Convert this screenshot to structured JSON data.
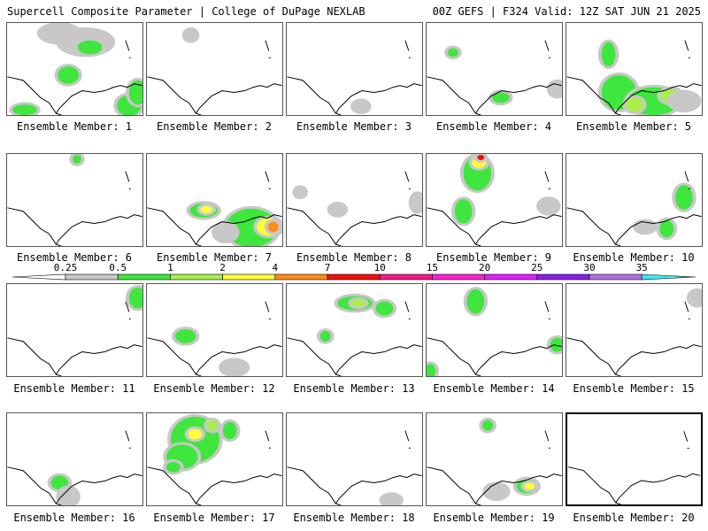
{
  "header": {
    "left": "Supercell Composite Parameter | College of DuPage NEXLAB",
    "right": "00Z GEFS | F324 Valid: 12Z SAT JUN 21 2025"
  },
  "member_prefix": "Ensemble Member: ",
  "members": [
    1,
    2,
    3,
    4,
    5,
    6,
    7,
    8,
    9,
    10,
    11,
    12,
    13,
    14,
    15,
    16,
    17,
    18,
    19,
    20
  ],
  "selected_member": 20,
  "colorbar": {
    "labels": [
      "0.25",
      "0.5",
      "1",
      "2",
      "4",
      "7",
      "10",
      "15",
      "20",
      "25",
      "30",
      "35"
    ],
    "colors": [
      "#ffffff",
      "#c8c8c8",
      "#3ee63e",
      "#a8f04a",
      "#ffff3a",
      "#ff8c1a",
      "#f01010",
      "#f01a8c",
      "#ff20d0",
      "#e020ff",
      "#8a20e6",
      "#b070e0",
      "#40e8f0"
    ]
  }
}
